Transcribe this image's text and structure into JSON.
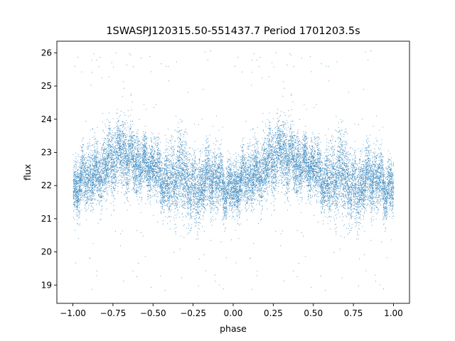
{
  "chart_data": {
    "type": "scatter",
    "title": "1SWASPJ120315.50-551437.7 Period 1701203.5s",
    "xlabel": "phase",
    "ylabel": "flux",
    "xlim": [
      -1.1,
      1.1
    ],
    "ylim": [
      18.45,
      26.35
    ],
    "xticks": [
      -1.0,
      -0.75,
      -0.5,
      -0.25,
      0.0,
      0.25,
      0.5,
      0.75,
      1.0
    ],
    "xtick_labels": [
      "−1.00",
      "−0.75",
      "−0.50",
      "−0.25",
      "0.00",
      "0.25",
      "0.50",
      "0.75",
      "1.00"
    ],
    "yticks": [
      19,
      20,
      21,
      22,
      23,
      24,
      25,
      26
    ],
    "ytick_labels": [
      "19",
      "20",
      "21",
      "22",
      "23",
      "24",
      "25",
      "26"
    ],
    "grid": false,
    "marker_color": "#1f77b4",
    "series": [
      {
        "profile": {
          "phase": [
            0.0,
            0.05,
            0.1,
            0.15,
            0.2,
            0.25,
            0.3,
            0.35,
            0.4,
            0.45,
            0.5,
            0.55,
            0.6,
            0.65,
            0.7,
            0.75,
            0.8,
            0.85,
            0.9,
            0.95,
            1.0
          ],
          "center_flux": [
            21.9,
            22.1,
            22.3,
            22.3,
            22.6,
            22.8,
            23.0,
            22.8,
            22.6,
            22.6,
            22.6,
            22.2,
            22.0,
            22.5,
            22.3,
            21.8,
            22.0,
            22.3,
            22.2,
            21.9,
            21.9
          ],
          "spread": [
            0.9,
            1.0,
            1.1,
            1.1,
            1.1,
            1.2,
            1.2,
            1.1,
            1.0,
            0.9,
            0.9,
            1.0,
            1.1,
            1.3,
            1.3,
            1.2,
            1.1,
            1.1,
            1.0,
            0.9,
            0.9
          ]
        },
        "n_points": 9000,
        "n_outliers": 140,
        "outlier_range": [
          18.8,
          26.1
        ]
      }
    ]
  }
}
